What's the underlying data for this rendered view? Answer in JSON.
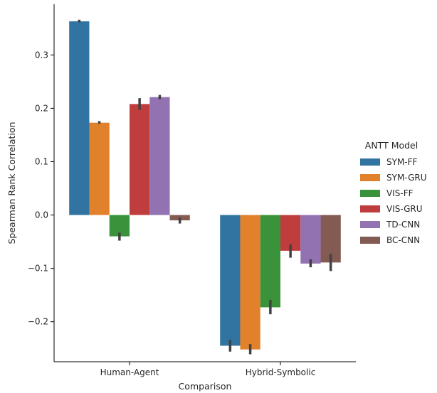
{
  "chart_data": {
    "type": "bar",
    "title": "",
    "xlabel": "Comparison",
    "ylabel": "Spearman Rank Correlation",
    "categories": [
      "Human-Agent",
      "Hybrid-Symbolic"
    ],
    "ylim": [
      -0.275,
      0.395
    ],
    "yticks": [
      -0.2,
      -0.1,
      0.0,
      0.1,
      0.2,
      0.3
    ],
    "ytick_labels": [
      "−0.2",
      "−0.1",
      "0.0",
      "0.1",
      "0.2",
      "0.3"
    ],
    "grid": false,
    "legend": {
      "title": "ANTT Model",
      "placement": "right"
    },
    "series": [
      {
        "name": "SYM-FF",
        "color": "#3274a1",
        "values": [
          0.363,
          -0.245
        ],
        "error_low": [
          0.361,
          -0.256
        ],
        "error_high": [
          0.366,
          -0.234
        ]
      },
      {
        "name": "SYM-GRU",
        "color": "#e1812c",
        "values": [
          0.173,
          -0.252
        ],
        "error_low": [
          0.171,
          -0.261
        ],
        "error_high": [
          0.176,
          -0.242
        ]
      },
      {
        "name": "VIS-FF",
        "color": "#3a923a",
        "values": [
          -0.04,
          -0.173
        ],
        "error_low": [
          -0.048,
          -0.186
        ],
        "error_high": [
          -0.033,
          -0.159
        ]
      },
      {
        "name": "VIS-GRU",
        "color": "#c03d3e",
        "values": [
          0.208,
          -0.067
        ],
        "error_low": [
          0.197,
          -0.08
        ],
        "error_high": [
          0.219,
          -0.055
        ]
      },
      {
        "name": "TD-CNN",
        "color": "#9372b2",
        "values": [
          0.221,
          -0.091
        ],
        "error_low": [
          0.217,
          -0.098
        ],
        "error_high": [
          0.225,
          -0.083
        ]
      },
      {
        "name": "BC-CNN",
        "color": "#845b53",
        "values": [
          -0.01,
          -0.089
        ],
        "error_low": [
          -0.016,
          -0.105
        ],
        "error_high": [
          -0.005,
          -0.073
        ]
      }
    ]
  }
}
